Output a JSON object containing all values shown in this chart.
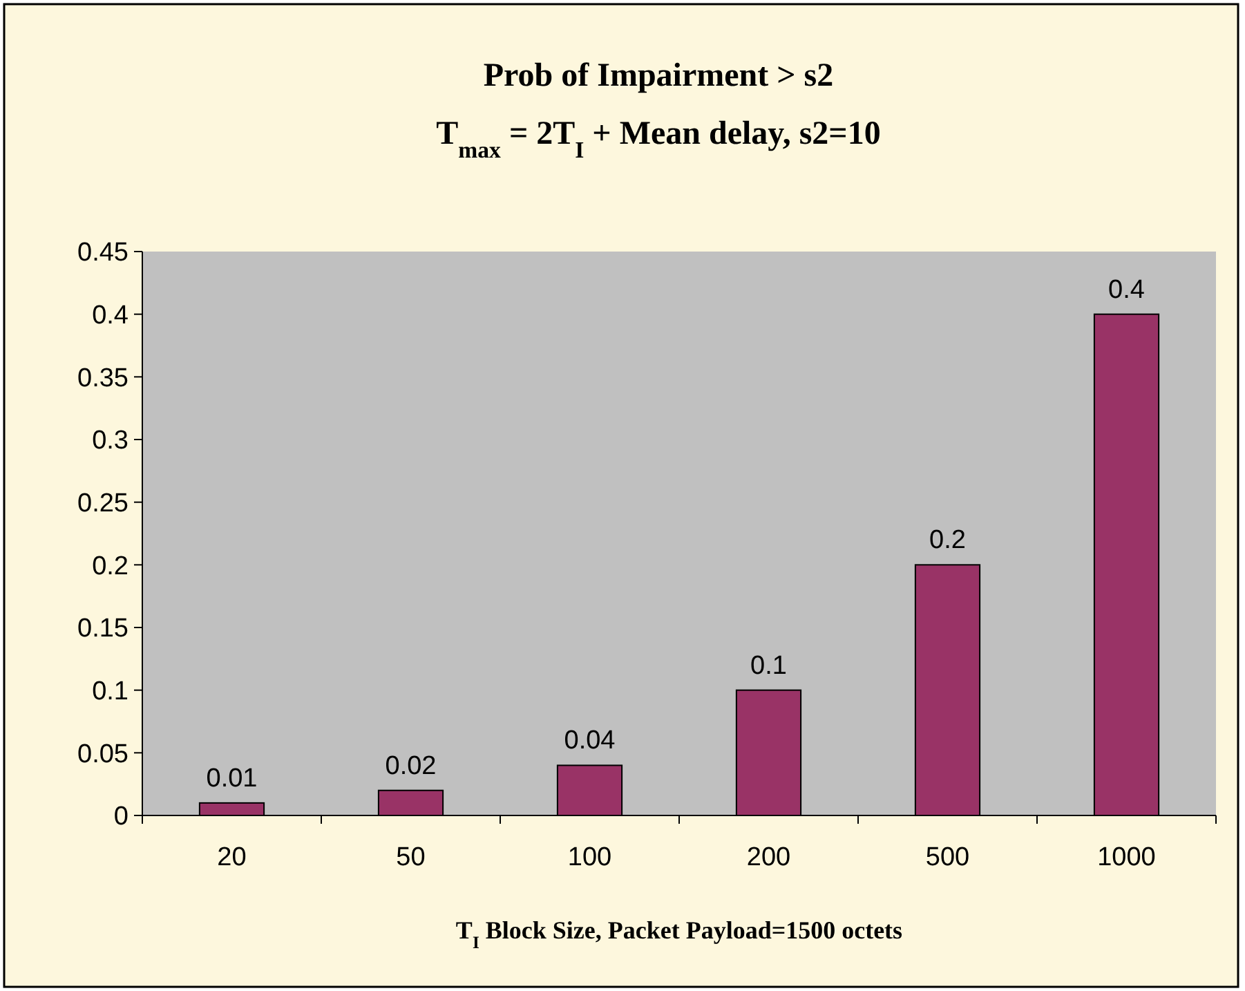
{
  "chart_data": {
    "type": "bar",
    "title": "Prob of Impairment > s2",
    "subtitle": "T$_{max}$ = 2T$_{I}$ + Mean delay,  s2=10",
    "xlabel": "T$_{I}$ Block Size, Packet Payload=1500 octets",
    "categories": [
      "20",
      "50",
      "100",
      "200",
      "500",
      "1000"
    ],
    "values": [
      0.01,
      0.02,
      0.04,
      0.1,
      0.2,
      0.4
    ],
    "color": "#993366",
    "ylim": [
      0,
      0.45
    ],
    "yticks": [
      0,
      0.05,
      0.1,
      0.15,
      0.2,
      0.25,
      0.3,
      0.35,
      0.4,
      0.45
    ],
    "data_labels": true,
    "grid": false
  }
}
